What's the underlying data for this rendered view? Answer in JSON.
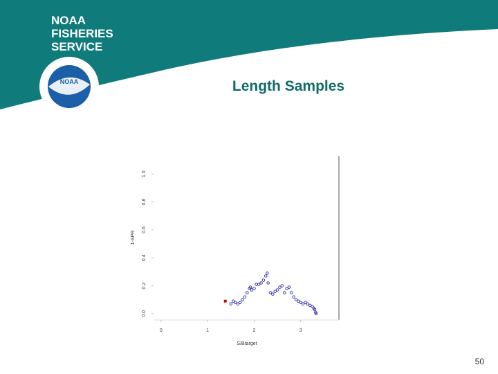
{
  "header": {
    "lines": [
      "NOAA",
      "FISHERIES",
      "SERVICE"
    ],
    "logo": "NOAA"
  },
  "page_number": "50",
  "chart_data": {
    "type": "scatter",
    "title": "Length Samples",
    "xlabel": "S/Btarget",
    "ylabel": "1-SPR",
    "xlim": [
      -0.16,
      3.82
    ],
    "ylim": [
      -0.045,
      1.13
    ],
    "xticks": [
      0,
      1,
      2,
      3
    ],
    "yticks": [
      {
        "value": 0,
        "label": "0.0"
      },
      {
        "value": 0.2,
        "label": "0.2"
      },
      {
        "value": 0.4,
        "label": "0.4"
      },
      {
        "value": 0.6,
        "label": "0.6"
      },
      {
        "value": 0.8,
        "label": "0.8"
      },
      {
        "value": 1,
        "label": "1.0"
      }
    ],
    "grid": false,
    "series": [
      {
        "color": "#cc0000",
        "marker": "square",
        "x": [
          1.38
        ],
        "values": [
          0.09
        ]
      },
      {
        "color": "#2a2aa8",
        "marker": "circle",
        "x": [
          1.5,
          1.55,
          1.6,
          1.65,
          1.7,
          1.75,
          1.8,
          1.85,
          1.9,
          1.92,
          1.95,
          2.0,
          2.05,
          2.1,
          2.15,
          2.2,
          2.25,
          2.28,
          2.3,
          2.35,
          2.4,
          2.45,
          2.5,
          2.55,
          2.6,
          2.65,
          2.7,
          2.75,
          2.8,
          2.85,
          2.9,
          2.95,
          3.0,
          3.05,
          3.1,
          3.15,
          3.2,
          3.25,
          3.28,
          3.3,
          3.32,
          3.33
        ],
        "values": [
          0.07,
          0.09,
          0.08,
          0.07,
          0.08,
          0.1,
          0.12,
          0.15,
          0.18,
          0.19,
          0.17,
          0.18,
          0.21,
          0.21,
          0.22,
          0.24,
          0.27,
          0.29,
          0.22,
          0.15,
          0.14,
          0.16,
          0.17,
          0.19,
          0.2,
          0.15,
          0.18,
          0.19,
          0.15,
          0.12,
          0.1,
          0.09,
          0.08,
          0.07,
          0.08,
          0.07,
          0.06,
          0.05,
          0.04,
          0.03,
          0.01,
          0.0
        ]
      }
    ]
  }
}
